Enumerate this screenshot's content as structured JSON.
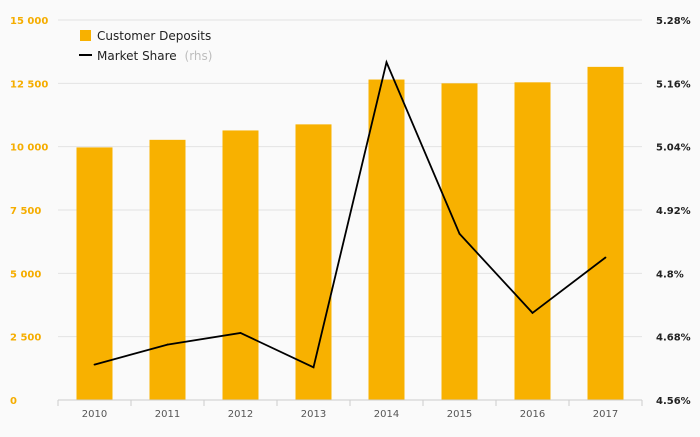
{
  "chart_data": {
    "type": "bar",
    "categories": [
      "2010",
      "2011",
      "2012",
      "2013",
      "2014",
      "2015",
      "2016",
      "2017"
    ],
    "series": [
      {
        "name": "Customer Deposits",
        "type": "bar",
        "axis": "left",
        "color": "#f8b100",
        "values": [
          9970,
          10270,
          10640,
          10880,
          12650,
          12500,
          12540,
          13150
        ]
      },
      {
        "name": "Market Share",
        "name_suffix": "(rhs)",
        "type": "line",
        "axis": "right",
        "color": "#000000",
        "values": [
          4.627,
          4.665,
          4.687,
          4.622,
          5.2,
          4.875,
          4.725,
          4.83
        ]
      }
    ],
    "y_left": {
      "ylim": [
        0,
        15000
      ],
      "ticks": [
        0,
        2500,
        5000,
        7500,
        10000,
        12500,
        15000
      ],
      "tick_labels": [
        "0",
        "2 500",
        "5 000",
        "7 500",
        "10 000",
        "12 500",
        "15 000"
      ],
      "color": "#f5ad00"
    },
    "y_right": {
      "ylim": [
        4.56,
        5.28
      ],
      "ticks": [
        4.56,
        4.68,
        4.8,
        4.92,
        5.04,
        5.16,
        5.28
      ],
      "tick_labels": [
        "4.56%",
        "4.68%",
        "4.8%",
        "4.92%",
        "5.04%",
        "5.16%",
        "5.28%"
      ],
      "color": "#222222"
    },
    "grid": true,
    "legend": "top-left",
    "title": "",
    "xlabel": "",
    "ylabel": ""
  }
}
